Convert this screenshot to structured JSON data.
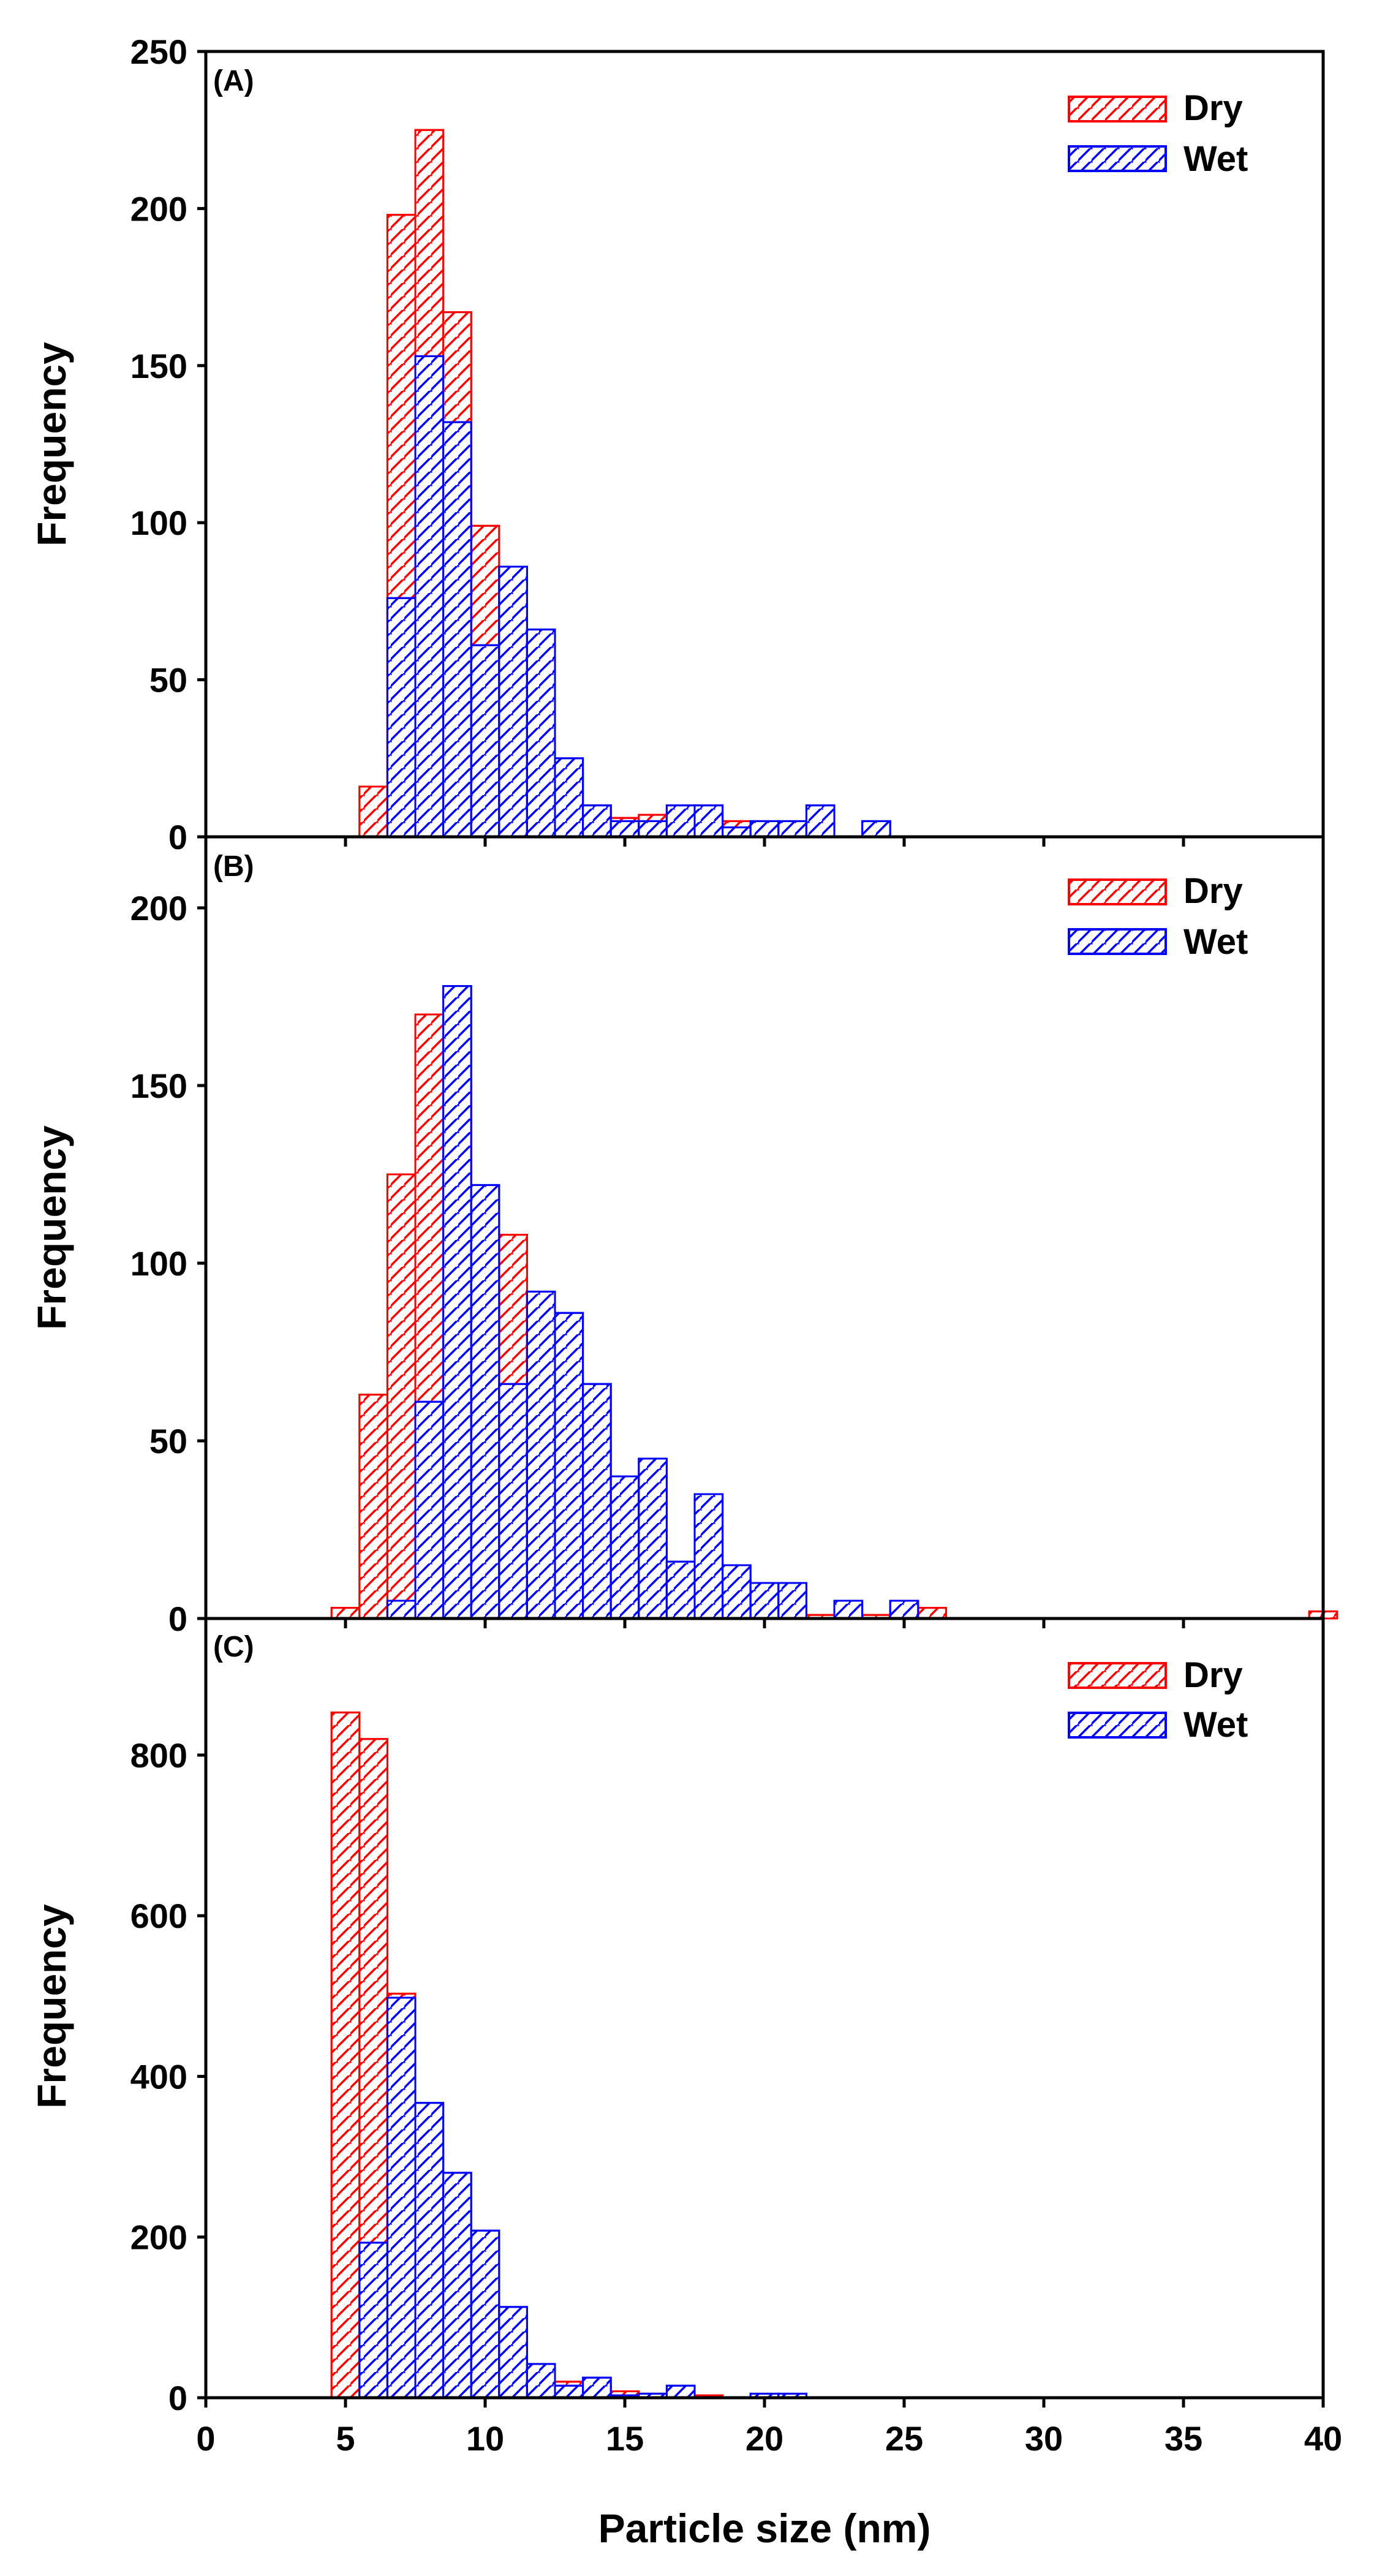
{
  "figure": {
    "x_axis_label": "Particle size (nm)",
    "y_axis_label": "Frequency",
    "colors": {
      "dry": "#ff0000",
      "wet": "#0000ff"
    },
    "hatch": "diagonal"
  },
  "chart_data": [
    {
      "type": "bar",
      "panel_label": "(A)",
      "xlim": [
        0,
        40
      ],
      "xticks": [
        0,
        5,
        10,
        15,
        20,
        25,
        30,
        35,
        40
      ],
      "x_tick_labels_shown": false,
      "ylim": [
        0,
        250
      ],
      "yticks": [
        0,
        50,
        100,
        150,
        200,
        250
      ],
      "bin_width": 1,
      "legend": {
        "position": "top-right",
        "entries": [
          "Dry",
          "Wet"
        ]
      },
      "series": [
        {
          "name": "Dry",
          "color": "#ff0000",
          "bin_start": [
            5.5,
            6.5,
            7.5,
            8.5,
            9.5,
            10.5,
            11.5,
            12.5,
            13.5,
            14.5,
            15.5,
            16.5,
            17.5,
            18.5,
            19.5,
            20.5,
            21.5
          ],
          "values": [
            16,
            198,
            225,
            167,
            99,
            67,
            32,
            21,
            10,
            6,
            7,
            8,
            6,
            5,
            3,
            3,
            1
          ]
        },
        {
          "name": "Wet",
          "color": "#0000ff",
          "bin_start": [
            6.5,
            7.5,
            8.5,
            9.5,
            10.5,
            11.5,
            12.5,
            13.5,
            14.5,
            15.5,
            16.5,
            17.5,
            18.5,
            19.5,
            20.5,
            21.5,
            22.5,
            23.5
          ],
          "values": [
            76,
            153,
            132,
            61,
            86,
            66,
            25,
            10,
            5,
            5,
            10,
            10,
            3,
            5,
            5,
            10,
            0,
            5
          ]
        }
      ]
    },
    {
      "type": "bar",
      "panel_label": "(B)",
      "xlim": [
        0,
        40
      ],
      "xticks": [
        0,
        5,
        10,
        15,
        20,
        25,
        30,
        35,
        40
      ],
      "x_tick_labels_shown": false,
      "ylim": [
        0,
        220
      ],
      "yticks": [
        0,
        50,
        100,
        150,
        200
      ],
      "bin_width": 1,
      "legend": {
        "position": "top-right",
        "entries": [
          "Dry",
          "Wet"
        ]
      },
      "series": [
        {
          "name": "Dry",
          "color": "#ff0000",
          "bin_start": [
            4.5,
            5.5,
            6.5,
            7.5,
            8.5,
            9.5,
            10.5,
            11.5,
            12.5,
            13.5,
            14.5,
            15.5,
            16.5,
            17.5,
            18.5,
            19.5,
            20.5,
            21.5,
            22.5,
            23.5,
            24.5,
            25.5,
            39.5
          ],
          "values": [
            3,
            63,
            125,
            170,
            150,
            97,
            108,
            75,
            68,
            40,
            40,
            33,
            15,
            16,
            11,
            5,
            2,
            1,
            1,
            1,
            1,
            3,
            2
          ]
        },
        {
          "name": "Wet",
          "color": "#0000ff",
          "bin_start": [
            6.5,
            7.5,
            8.5,
            9.5,
            10.5,
            11.5,
            12.5,
            13.5,
            14.5,
            15.5,
            16.5,
            17.5,
            18.5,
            19.5,
            20.5,
            21.5,
            22.5,
            23.5,
            24.5
          ],
          "values": [
            5,
            61,
            178,
            122,
            66,
            92,
            86,
            66,
            40,
            45,
            16,
            35,
            15,
            10,
            10,
            0,
            5,
            0,
            5
          ]
        }
      ]
    },
    {
      "type": "bar",
      "panel_label": "(C)",
      "xlim": [
        0,
        40
      ],
      "xticks": [
        0,
        5,
        10,
        15,
        20,
        25,
        30,
        35,
        40
      ],
      "x_tick_labels_shown": true,
      "ylim": [
        0,
        970
      ],
      "yticks": [
        0,
        200,
        400,
        600,
        800
      ],
      "bin_width": 1,
      "legend": {
        "position": "top-right",
        "entries": [
          "Dry",
          "Wet"
        ]
      },
      "series": [
        {
          "name": "Dry",
          "color": "#ff0000",
          "bin_start": [
            4.5,
            5.5,
            6.5,
            7.5,
            8.5,
            9.5,
            10.5,
            11.5,
            12.5,
            13.5,
            14.5,
            15.5,
            16.5,
            17.5
          ],
          "values": [
            853,
            820,
            503,
            308,
            195,
            122,
            67,
            30,
            20,
            15,
            8,
            5,
            5,
            3
          ]
        },
        {
          "name": "Wet",
          "color": "#0000ff",
          "bin_start": [
            5.5,
            6.5,
            7.5,
            8.5,
            9.5,
            10.5,
            11.5,
            12.5,
            13.5,
            14.5,
            15.5,
            16.5,
            17.5,
            18.5,
            19.5,
            20.5
          ],
          "values": [
            193,
            498,
            367,
            280,
            208,
            113,
            42,
            15,
            25,
            3,
            5,
            15,
            0,
            0,
            5,
            5
          ]
        }
      ]
    }
  ]
}
